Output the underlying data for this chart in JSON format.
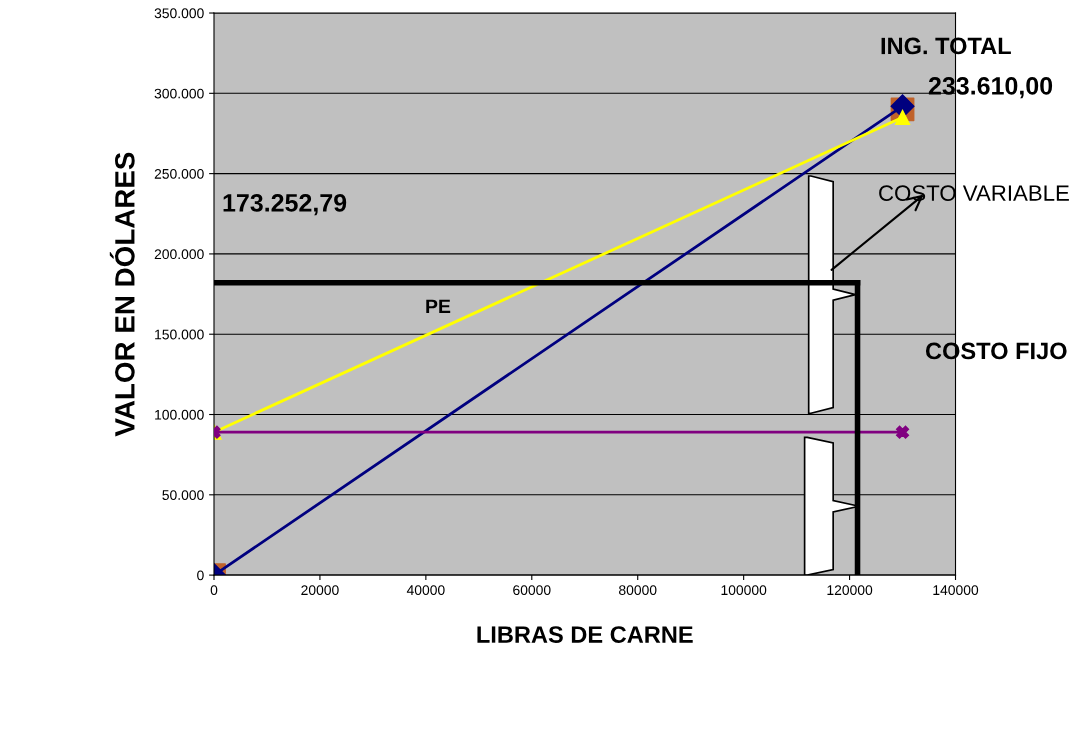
{
  "chart_data": {
    "type": "line",
    "xlabel": "LIBRAS DE CARNE",
    "ylabel": "VALOR EN DÓLARES",
    "series": [
      {
        "type": "scatter",
        "color": "#c0622a",
        "marker": "square",
        "x": [
          0,
          130000
        ],
        "values": [
          0,
          290000
        ]
      },
      {
        "color": "#00007f",
        "marker": "diamond",
        "x": [
          0,
          130000
        ],
        "values": [
          0,
          292000
        ]
      },
      {
        "color": "#ffff00",
        "marker": "triangle",
        "x": [
          0,
          130000
        ],
        "values": [
          89000,
          285000
        ]
      },
      {
        "color": "#800080",
        "marker": "cross",
        "x": [
          0,
          130000
        ],
        "values": [
          89000,
          89000
        ]
      },
      {
        "color": "#000000",
        "marker": "none",
        "x": [
          0,
          121500
        ],
        "values": [
          182000,
          182000
        ]
      },
      {
        "color": "#000000",
        "marker": "none",
        "x": [
          121500,
          121500
        ],
        "values": [
          0,
          182000
        ]
      }
    ],
    "xlim": [
      0,
      140000
    ],
    "xticks": [
      0,
      20000,
      40000,
      60000,
      80000,
      100000,
      120000,
      140000
    ],
    "ylim": [
      0,
      350000
    ],
    "yticks": [
      0,
      {
        "value": 50000,
        "label": "50.000"
      },
      {
        "value": 100000,
        "label": "100.000"
      },
      {
        "value": 150000,
        "label": "150.000"
      },
      {
        "value": 200000,
        "label": "200.000"
      },
      {
        "value": 250000,
        "label": "250.000"
      },
      {
        "value": 300000,
        "label": "300.000"
      },
      {
        "value": 350000,
        "label": "350.000"
      }
    ],
    "grid": "y",
    "legend": false,
    "annotations": [
      "ING. TOTAL",
      "233.610,00",
      "173.252,79",
      "COSTO VARIABLE",
      "COSTO FIJO",
      "PE"
    ]
  }
}
